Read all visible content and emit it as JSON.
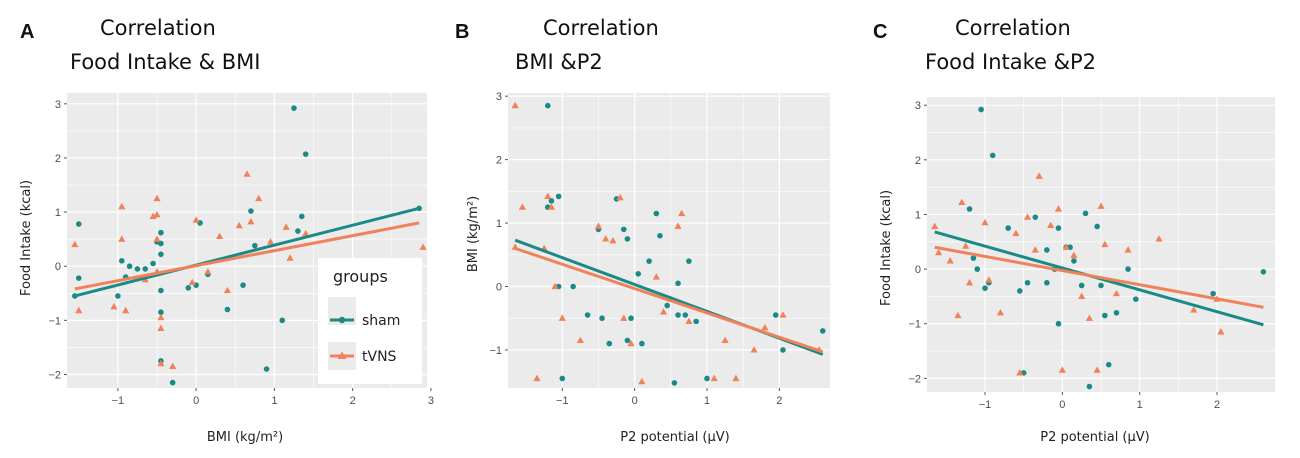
{
  "colors": {
    "sham": "#1b8a87",
    "tvns": "#f0825a",
    "panel_bg": "#ebebeb",
    "grid": "#ffffff"
  },
  "legend": {
    "title": "groups",
    "items": [
      {
        "name": "sham",
        "color": "#1b8a87"
      },
      {
        "name": "tVNS",
        "color": "#f0825a"
      }
    ]
  },
  "chart_data": [
    {
      "type": "scatter",
      "letter": "A",
      "title_lines": [
        "Correlation",
        "Food Intake & BMI"
      ],
      "xlabel": "BMI (kg/m²)",
      "ylabel": "Food Intake (kcal)",
      "xlim": [
        -1.65,
        2.95
      ],
      "ylim": [
        -2.25,
        3.2
      ],
      "xticks": [
        -1,
        0,
        1,
        2,
        3
      ],
      "yticks": [
        -2,
        -1,
        0,
        1,
        2,
        3
      ],
      "xtick_labels": [
        "−1",
        "0",
        "1",
        "2",
        "3"
      ],
      "ytick_labels": [
        "−2",
        "−1",
        "0",
        "1",
        "2",
        "3"
      ],
      "series": [
        {
          "name": "sham",
          "marker": "circle",
          "points": [
            [
              -1.5,
              0.78
            ],
            [
              -1.5,
              -0.22
            ],
            [
              -1.55,
              -0.55
            ],
            [
              -1.0,
              -0.55
            ],
            [
              -0.95,
              0.1
            ],
            [
              -0.9,
              -0.2
            ],
            [
              -0.85,
              0.0
            ],
            [
              -0.75,
              -0.05
            ],
            [
              -0.65,
              -0.05
            ],
            [
              -0.55,
              0.05
            ],
            [
              -0.5,
              0.45
            ],
            [
              -0.45,
              0.62
            ],
            [
              -0.45,
              0.42
            ],
            [
              -0.45,
              0.22
            ],
            [
              -0.45,
              -0.45
            ],
            [
              -0.45,
              -0.85
            ],
            [
              -0.45,
              -1.75
            ],
            [
              -0.3,
              -2.15
            ],
            [
              -0.1,
              -0.4
            ],
            [
              0.05,
              0.8
            ],
            [
              0.0,
              -0.35
            ],
            [
              0.15,
              -0.15
            ],
            [
              0.4,
              -0.8
            ],
            [
              0.6,
              -0.35
            ],
            [
              0.7,
              1.02
            ],
            [
              0.75,
              0.38
            ],
            [
              0.9,
              -1.9
            ],
            [
              1.1,
              -1.0
            ],
            [
              1.25,
              2.92
            ],
            [
              1.3,
              0.65
            ],
            [
              1.35,
              0.92
            ],
            [
              1.4,
              2.07
            ],
            [
              2.85,
              1.07
            ]
          ]
        },
        {
          "name": "tVNS",
          "marker": "triangle",
          "points": [
            [
              -1.55,
              0.4
            ],
            [
              -1.5,
              -0.82
            ],
            [
              -1.05,
              -0.75
            ],
            [
              -0.95,
              1.1
            ],
            [
              -0.95,
              0.5
            ],
            [
              -0.9,
              -0.82
            ],
            [
              -0.65,
              -0.25
            ],
            [
              -0.55,
              0.92
            ],
            [
              -0.5,
              1.25
            ],
            [
              -0.5,
              0.95
            ],
            [
              -0.5,
              0.5
            ],
            [
              -0.5,
              -0.1
            ],
            [
              -0.45,
              -0.95
            ],
            [
              -0.45,
              -1.15
            ],
            [
              -0.45,
              -1.8
            ],
            [
              -0.3,
              -1.85
            ],
            [
              -0.05,
              -0.3
            ],
            [
              0.0,
              0.85
            ],
            [
              0.15,
              -0.1
            ],
            [
              0.3,
              0.55
            ],
            [
              0.4,
              -0.45
            ],
            [
              0.55,
              0.75
            ],
            [
              0.65,
              1.7
            ],
            [
              0.7,
              0.82
            ],
            [
              0.8,
              1.25
            ],
            [
              0.95,
              0.45
            ],
            [
              1.15,
              0.72
            ],
            [
              1.2,
              0.15
            ],
            [
              1.4,
              0.6
            ],
            [
              2.9,
              0.35
            ]
          ]
        }
      ],
      "fits": [
        {
          "name": "sham",
          "x": [
            -1.55,
            2.85
          ],
          "y": [
            -0.55,
            1.07
          ]
        },
        {
          "name": "tVNS",
          "x": [
            -1.55,
            2.85
          ],
          "y": [
            -0.42,
            0.8
          ]
        }
      ]
    },
    {
      "type": "scatter",
      "letter": "B",
      "title_lines": [
        "Correlation",
        "BMI &P2"
      ],
      "xlabel": "P2 potential (µV)",
      "ylabel": "BMI (kg/m²)",
      "xlim": [
        -1.75,
        2.7
      ],
      "ylim": [
        -1.6,
        3.05
      ],
      "xticks": [
        -1,
        0,
        1,
        2
      ],
      "yticks": [
        -1,
        0,
        1,
        2,
        3
      ],
      "xtick_labels": [
        "−1",
        "0",
        "1",
        "2"
      ],
      "ytick_labels": [
        "−1",
        "0",
        "1",
        "2",
        "3"
      ],
      "series": [
        {
          "name": "sham",
          "marker": "circle",
          "points": [
            [
              -1.2,
              2.85
            ],
            [
              -1.2,
              1.25
            ],
            [
              -1.15,
              1.35
            ],
            [
              -1.05,
              1.42
            ],
            [
              -1.05,
              0.0
            ],
            [
              -1.0,
              -1.45
            ],
            [
              -0.85,
              0.0
            ],
            [
              -0.65,
              -0.45
            ],
            [
              -0.5,
              0.9
            ],
            [
              -0.45,
              -0.5
            ],
            [
              -0.35,
              -0.9
            ],
            [
              -0.25,
              1.38
            ],
            [
              -0.15,
              0.9
            ],
            [
              -0.1,
              0.75
            ],
            [
              -0.1,
              -0.85
            ],
            [
              -0.05,
              -0.5
            ],
            [
              0.05,
              0.2
            ],
            [
              0.1,
              -0.9
            ],
            [
              0.2,
              0.4
            ],
            [
              0.3,
              1.15
            ],
            [
              0.35,
              0.8
            ],
            [
              0.45,
              -0.3
            ],
            [
              0.6,
              0.05
            ],
            [
              0.6,
              -0.45
            ],
            [
              0.55,
              -1.52
            ],
            [
              0.7,
              -0.45
            ],
            [
              0.75,
              0.4
            ],
            [
              0.85,
              -0.55
            ],
            [
              1.0,
              -1.45
            ],
            [
              1.95,
              -0.45
            ],
            [
              2.05,
              -1.0
            ],
            [
              2.6,
              -0.7
            ]
          ]
        },
        {
          "name": "tVNS",
          "marker": "triangle",
          "points": [
            [
              -1.65,
              2.85
            ],
            [
              -1.65,
              0.62
            ],
            [
              -1.55,
              1.25
            ],
            [
              -1.35,
              -1.45
            ],
            [
              -1.25,
              0.6
            ],
            [
              -1.2,
              1.42
            ],
            [
              -1.15,
              1.25
            ],
            [
              -1.1,
              0.0
            ],
            [
              -1.0,
              -0.5
            ],
            [
              -0.75,
              -0.85
            ],
            [
              -0.5,
              0.95
            ],
            [
              -0.4,
              0.75
            ],
            [
              -0.3,
              0.72
            ],
            [
              -0.2,
              1.4
            ],
            [
              -0.15,
              -0.5
            ],
            [
              -0.05,
              -0.9
            ],
            [
              0.1,
              -1.5
            ],
            [
              0.3,
              0.15
            ],
            [
              0.4,
              -0.4
            ],
            [
              0.5,
              -0.2
            ],
            [
              0.6,
              0.95
            ],
            [
              0.65,
              1.15
            ],
            [
              0.75,
              -0.55
            ],
            [
              1.1,
              -1.45
            ],
            [
              1.25,
              -0.85
            ],
            [
              1.4,
              -1.45
            ],
            [
              1.65,
              -1.0
            ],
            [
              1.8,
              -0.65
            ],
            [
              2.05,
              -0.45
            ],
            [
              2.55,
              -1.0
            ]
          ]
        }
      ],
      "fits": [
        {
          "name": "sham",
          "x": [
            -1.65,
            2.6
          ],
          "y": [
            0.73,
            -1.07
          ]
        },
        {
          "name": "tVNS",
          "x": [
            -1.65,
            2.6
          ],
          "y": [
            0.6,
            -1.03
          ]
        }
      ]
    },
    {
      "type": "scatter",
      "letter": "C",
      "title_lines": [
        "Correlation",
        "Food Intake &P2"
      ],
      "xlabel": "P2 potential (µV)",
      "ylabel": "Food Intake (kcal)",
      "xlim": [
        -1.75,
        2.75
      ],
      "ylim": [
        -2.25,
        3.15
      ],
      "xticks": [
        -1,
        0,
        1,
        2
      ],
      "yticks": [
        -2,
        -1,
        0,
        1,
        2,
        3
      ],
      "xtick_labels": [
        "−1",
        "0",
        "1",
        "2"
      ],
      "ytick_labels": [
        "−2",
        "−1",
        "0",
        "1",
        "2",
        "3"
      ],
      "series": [
        {
          "name": "sham",
          "marker": "circle",
          "points": [
            [
              -1.2,
              1.1
            ],
            [
              -1.15,
              0.2
            ],
            [
              -1.1,
              0.0
            ],
            [
              -1.05,
              2.92
            ],
            [
              -1.0,
              -0.35
            ],
            [
              -0.95,
              -0.25
            ],
            [
              -0.9,
              2.08
            ],
            [
              -0.7,
              0.75
            ],
            [
              -0.55,
              -0.4
            ],
            [
              -0.45,
              -0.25
            ],
            [
              -0.35,
              0.95
            ],
            [
              -0.2,
              0.35
            ],
            [
              -0.2,
              -0.25
            ],
            [
              -0.1,
              0.0
            ],
            [
              -0.05,
              0.75
            ],
            [
              -0.05,
              -1.0
            ],
            [
              0.05,
              0.4
            ],
            [
              0.1,
              0.4
            ],
            [
              0.15,
              0.15
            ],
            [
              0.25,
              -0.3
            ],
            [
              0.3,
              1.02
            ],
            [
              0.35,
              -2.15
            ],
            [
              0.45,
              0.78
            ],
            [
              0.5,
              -0.3
            ],
            [
              0.55,
              -0.85
            ],
            [
              0.6,
              -1.75
            ],
            [
              0.7,
              -0.8
            ],
            [
              0.85,
              0.0
            ],
            [
              0.95,
              -0.55
            ],
            [
              1.95,
              -0.45
            ],
            [
              2.6,
              -0.05
            ],
            [
              -0.5,
              -1.9
            ]
          ]
        },
        {
          "name": "tVNS",
          "marker": "triangle",
          "points": [
            [
              -1.65,
              0.78
            ],
            [
              -1.6,
              0.3
            ],
            [
              -1.45,
              0.15
            ],
            [
              -1.35,
              -0.85
            ],
            [
              -1.3,
              1.22
            ],
            [
              -1.25,
              0.42
            ],
            [
              -1.2,
              -0.25
            ],
            [
              -1.0,
              0.85
            ],
            [
              -0.95,
              -0.2
            ],
            [
              -0.8,
              -0.8
            ],
            [
              -0.6,
              0.65
            ],
            [
              -0.45,
              0.95
            ],
            [
              -0.35,
              0.35
            ],
            [
              -0.3,
              1.7
            ],
            [
              -0.15,
              0.8
            ],
            [
              -0.05,
              1.1
            ],
            [
              0.0,
              -1.85
            ],
            [
              0.05,
              0.4
            ],
            [
              0.15,
              0.25
            ],
            [
              0.25,
              -0.5
            ],
            [
              0.35,
              -0.9
            ],
            [
              0.45,
              -1.85
            ],
            [
              0.5,
              1.15
            ],
            [
              0.55,
              0.45
            ],
            [
              0.7,
              -0.45
            ],
            [
              0.85,
              0.35
            ],
            [
              1.25,
              0.55
            ],
            [
              1.7,
              -0.75
            ],
            [
              2.0,
              -0.55
            ],
            [
              2.05,
              -1.15
            ],
            [
              -0.55,
              -1.9
            ]
          ]
        }
      ],
      "fits": [
        {
          "name": "sham",
          "x": [
            -1.65,
            2.6
          ],
          "y": [
            0.68,
            -1.02
          ]
        },
        {
          "name": "tVNS",
          "x": [
            -1.65,
            2.6
          ],
          "y": [
            0.4,
            -0.7
          ]
        }
      ]
    }
  ]
}
